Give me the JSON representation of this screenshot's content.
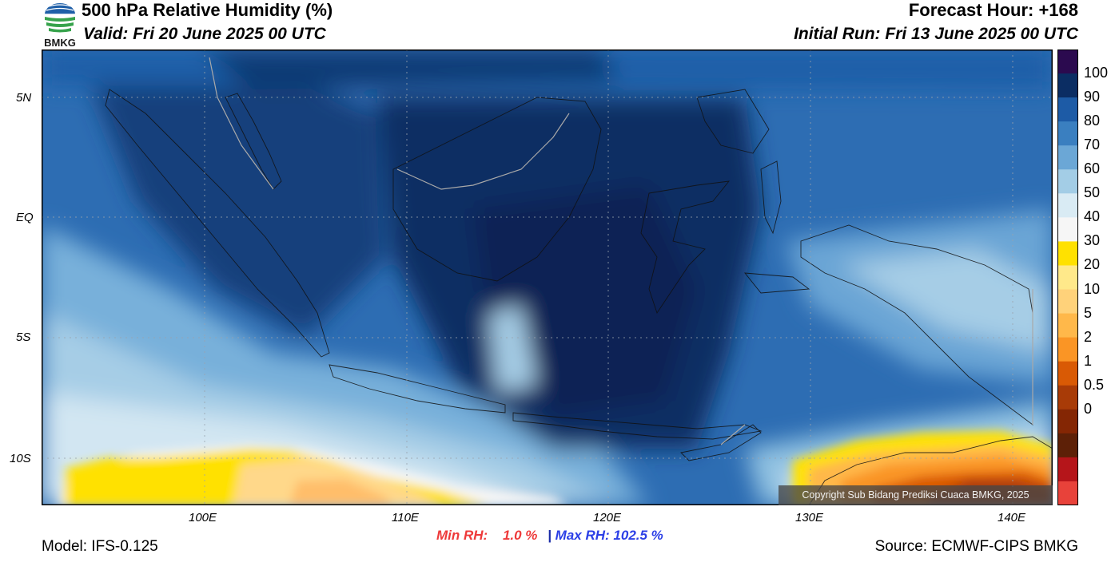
{
  "header": {
    "title": "500 hPa Relative Humidity (%)",
    "valid": "Valid: Fri 20 June 2025 00 UTC",
    "forecast_hour": "Forecast Hour: +168",
    "initial_run": "Initial Run: Fri 13 June 2025 00 UTC"
  },
  "logo": {
    "text": "BMKG",
    "icon": "bmkg-logo"
  },
  "map": {
    "lat_labels": [
      "5N",
      "EQ",
      "5S",
      "10S"
    ],
    "lon_labels": [
      "100E",
      "110E",
      "120E",
      "130E",
      "140E"
    ],
    "copyright": "Copyright Sub Bidang Prediksi Cuaca BMKG, 2025",
    "colors": {
      "very_moist": "#0b2d63",
      "moist": "#1d5ba6",
      "mid": "#4a8fcd",
      "light": "#9ecae3",
      "dry": "#ffe100",
      "very_dry": "#c84a05"
    }
  },
  "colorbar": {
    "labels": [
      "100",
      "90",
      "80",
      "70",
      "60",
      "50",
      "40",
      "30",
      "20",
      "10",
      "5",
      "2",
      "1",
      "0.5",
      "0"
    ],
    "colors": [
      "#2b0a4f",
      "#0b2d63",
      "#1d5ba6",
      "#3a7fc0",
      "#6ba7d6",
      "#a3cde6",
      "#d9ebf4",
      "#f6f6f6",
      "#ffe100",
      "#ffe98a",
      "#ffd27a",
      "#ffb84a",
      "#fa9525",
      "#d95a05",
      "#a83b07",
      "#842604",
      "#5d2007",
      "#b5151a",
      "#e8423a"
    ]
  },
  "stats": {
    "min_label": "Min RH:",
    "min_value": "1.0 %",
    "separator": "|",
    "max_label": "Max RH:",
    "max_value": "102.5 %"
  },
  "footer": {
    "model": "Model: IFS-0.125",
    "source": "Source: ECMWF-CIPS BMKG"
  }
}
